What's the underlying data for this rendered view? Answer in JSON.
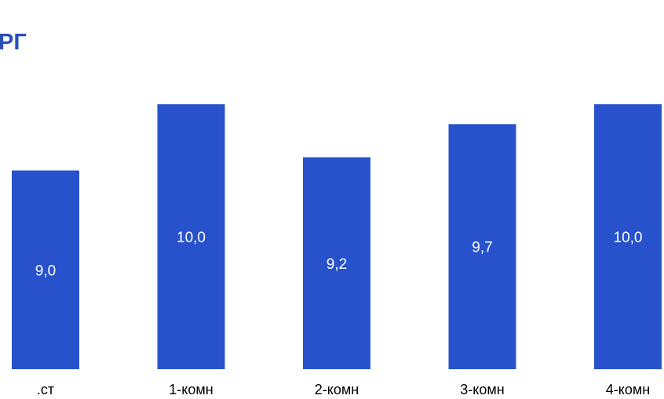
{
  "title": "РГ",
  "chart_data": {
    "type": "bar",
    "title": "РГ",
    "categories": [
      ".ст",
      "1-комн",
      "2-комн",
      "3-комн",
      "4-комн"
    ],
    "values": [
      9.0,
      10.0,
      9.2,
      9.7,
      10.0
    ],
    "value_labels": [
      "9,0",
      "10,0",
      "9,2",
      "9,7",
      "10,0"
    ],
    "ylim": [
      0,
      10
    ],
    "bar_color": "#2752cc",
    "grid": false,
    "legend": "none"
  }
}
